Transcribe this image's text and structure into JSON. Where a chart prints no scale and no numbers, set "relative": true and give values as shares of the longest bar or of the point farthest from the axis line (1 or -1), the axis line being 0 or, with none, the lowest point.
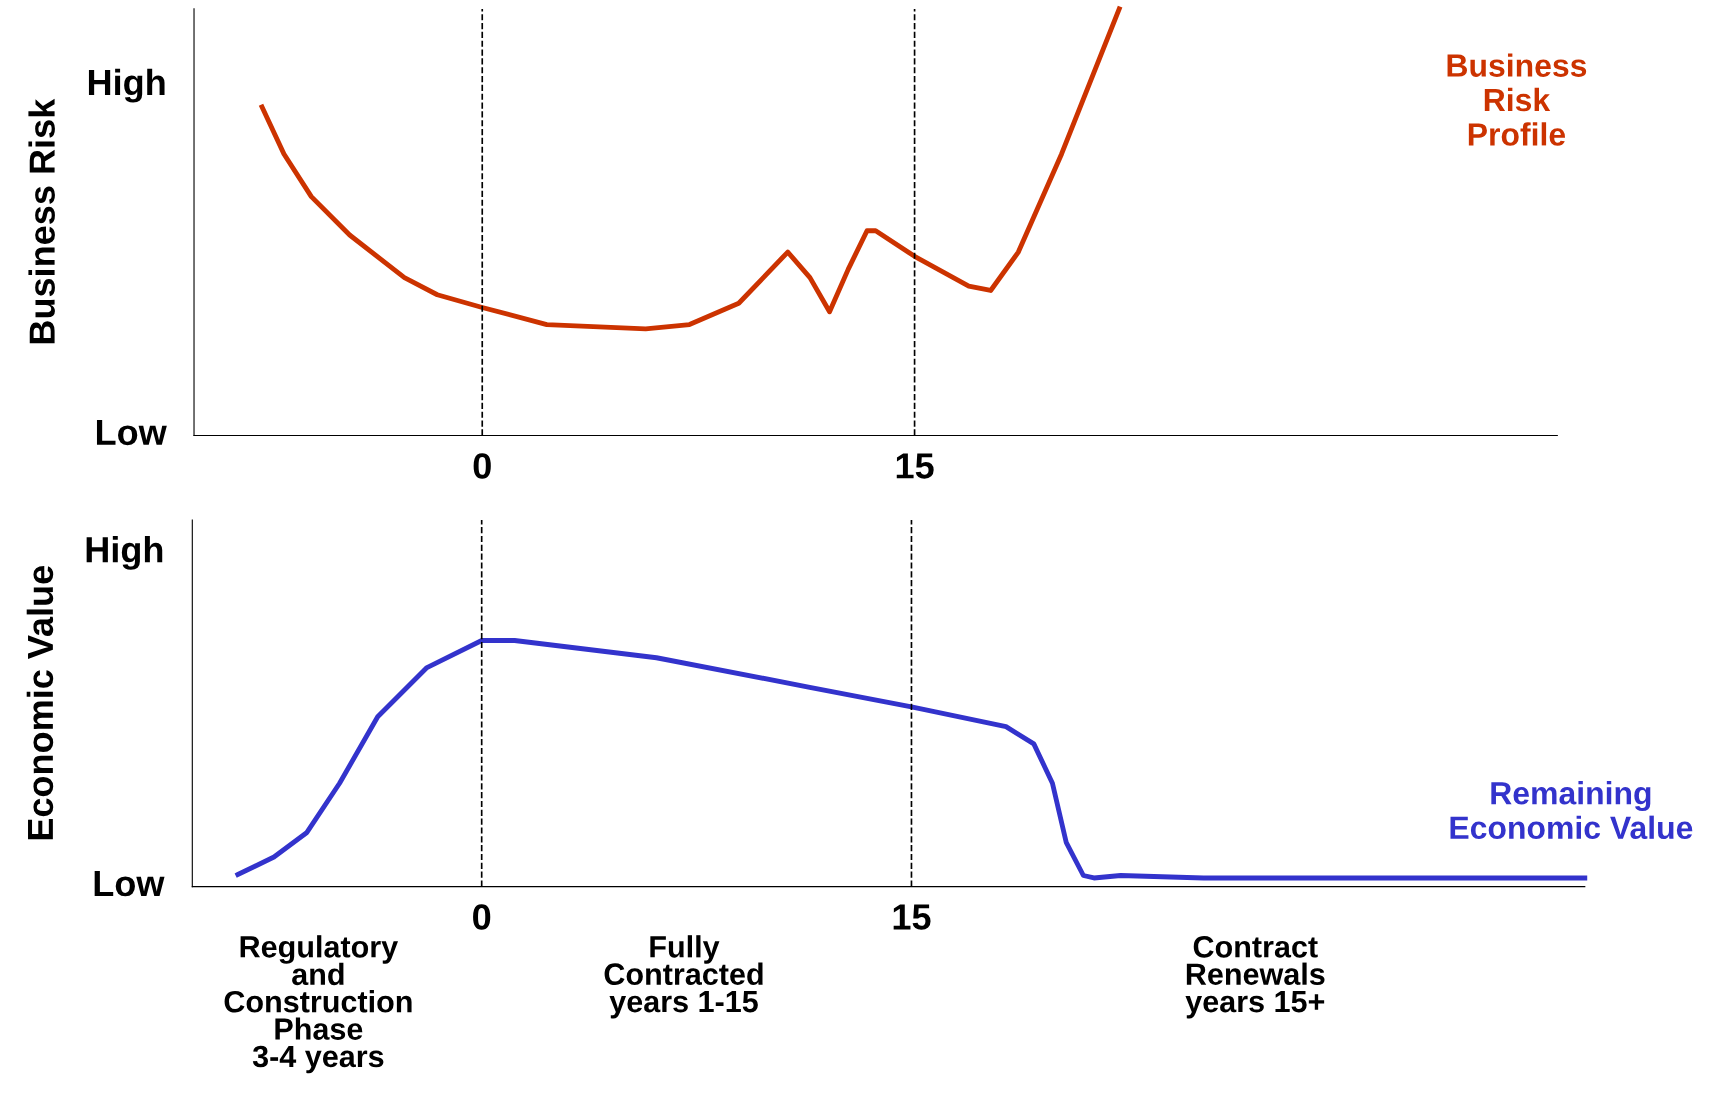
{
  "chart_data": [
    {
      "type": "line",
      "relative": true,
      "ylabel": "Business Risk",
      "xlim": [
        -10.0,
        37.3
      ],
      "xticks": [
        0,
        15
      ],
      "grid": false,
      "legend": false,
      "ref_lines": [
        {
          "axis": "x",
          "value": 0,
          "color": "#000000",
          "line_style": "dashed"
        },
        {
          "axis": "x",
          "value": 15,
          "color": "#000000",
          "line_style": "dashed"
        }
      ],
      "annotations": [
        "High",
        "Low"
      ],
      "series": [
        {
          "name": "Business\nRisk\nProfile",
          "color": "#cc3300",
          "x": [
            -7.64,
            -6.88,
            -5.93,
            -4.6,
            -2.7,
            -1.56,
            0,
            2.24,
            5.67,
            7.19,
            8.9,
            10.6,
            11.37,
            12.05,
            12.7,
            13.35,
            13.65,
            15.0,
            16.88,
            17.64,
            18.6,
            20.1,
            22.1
          ],
          "values": [
            0.77,
            0.66,
            0.56,
            0.47,
            0.37,
            0.33,
            0.3,
            0.26,
            0.25,
            0.26,
            0.31,
            0.43,
            0.37,
            0.29,
            0.39,
            0.48,
            0.48,
            0.42,
            0.35,
            0.34,
            0.43,
            0.66,
            1
          ]
        }
      ]
    },
    {
      "type": "line",
      "relative": true,
      "ylabel": "Economic Value",
      "xlim": [
        -10.1,
        38.5
      ],
      "xticks": [
        0,
        15
      ],
      "grid": false,
      "legend": false,
      "ref_lines": [
        {
          "axis": "x",
          "value": 0,
          "color": "#000000",
          "line_style": "dashed"
        },
        {
          "axis": "x",
          "value": 15,
          "color": "#000000",
          "line_style": "dashed"
        }
      ],
      "annotations": [
        "High",
        "Low",
        "Regulatory\nand\nConstruction\nPhase\n3-4 years",
        "Fully\nContracted\nyears 1-15",
        "Contract\nRenewals\nyears 15+"
      ],
      "series": [
        {
          "name": "Remaining\nEconomic Value",
          "color": "#3333cc",
          "x": [
            -8.51,
            -7.25,
            -6.1,
            -4.96,
            -3.63,
            -1.91,
            0,
            1.15,
            6.1,
            11.45,
            15.0,
            18.3,
            19.27,
            19.92,
            20.4,
            21.0,
            21.37,
            22.3,
            25.2,
            38.5
          ],
          "values": [
            0.049,
            0.12,
            0.22,
            0.42,
            0.69,
            0.89,
            1,
            1,
            0.93,
            0.81,
            0.73,
            0.65,
            0.58,
            0.42,
            0.18,
            0.045,
            0.035,
            0.045,
            0.035,
            0.035
          ]
        }
      ]
    }
  ]
}
